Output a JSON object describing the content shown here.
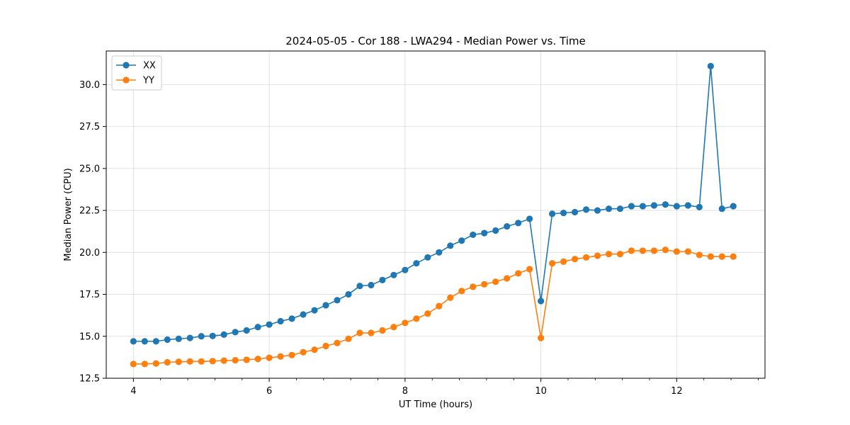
{
  "chart_data": {
    "type": "line",
    "title": "2024-05-05 - Cor 188 - LWA294 - Median Power vs. Time",
    "xlabel": "UT Time (hours)",
    "ylabel": "Median Power (CPU)",
    "xlim": [
      3.6,
      13.3
    ],
    "ylim": [
      12.5,
      32.0
    ],
    "xticks": [
      4,
      6,
      8,
      10,
      12
    ],
    "xtick_labels": [
      "4",
      "6",
      "8",
      "10",
      "12"
    ],
    "yticks": [
      12.5,
      15.0,
      17.5,
      20.0,
      22.5,
      25.0,
      27.5,
      30.0
    ],
    "ytick_labels": [
      "12.5",
      "15.0",
      "17.5",
      "20.0",
      "22.5",
      "25.0",
      "27.5",
      "30.0"
    ],
    "minor_x_step": 0.4,
    "grid": true,
    "legend_position": "top-left",
    "x": [
      4.0,
      4.1667,
      4.3333,
      4.5,
      4.6667,
      4.8333,
      5.0,
      5.1667,
      5.3333,
      5.5,
      5.6667,
      5.8333,
      6.0,
      6.1667,
      6.3333,
      6.5,
      6.6667,
      6.8333,
      7.0,
      7.1667,
      7.3333,
      7.5,
      7.6667,
      7.8333,
      8.0,
      8.1667,
      8.3333,
      8.5,
      8.6667,
      8.8333,
      9.0,
      9.1667,
      9.3333,
      9.5,
      9.6667,
      9.8333,
      10.0,
      10.1667,
      10.3333,
      10.5,
      10.6667,
      10.8333,
      11.0,
      11.1667,
      11.3333,
      11.5,
      11.6667,
      11.8333,
      12.0,
      12.1667,
      12.3333,
      12.5,
      12.6667,
      12.8333
    ],
    "series": [
      {
        "name": "XX",
        "color": "#1f77b4",
        "values": [
          14.7,
          14.7,
          14.7,
          14.8,
          14.85,
          14.9,
          15.0,
          15.02,
          15.1,
          15.25,
          15.35,
          15.55,
          15.7,
          15.9,
          16.05,
          16.3,
          16.55,
          16.85,
          17.15,
          17.5,
          18.0,
          18.05,
          18.35,
          18.65,
          18.95,
          19.35,
          19.7,
          20.0,
          20.4,
          20.7,
          21.05,
          21.15,
          21.3,
          21.55,
          21.75,
          22.0,
          17.1,
          22.3,
          22.35,
          22.4,
          22.55,
          22.5,
          22.6,
          22.6,
          22.75,
          22.75,
          22.8,
          22.85,
          22.75,
          22.8,
          22.7,
          31.1,
          22.6,
          22.75
        ]
      },
      {
        "name": "YY",
        "color": "#ff7f0e",
        "values": [
          13.35,
          13.35,
          13.38,
          13.45,
          13.48,
          13.5,
          13.5,
          13.52,
          13.55,
          13.57,
          13.6,
          13.65,
          13.72,
          13.8,
          13.88,
          14.05,
          14.2,
          14.42,
          14.6,
          14.85,
          15.2,
          15.2,
          15.35,
          15.55,
          15.8,
          16.05,
          16.35,
          16.8,
          17.3,
          17.7,
          17.95,
          18.1,
          18.25,
          18.45,
          18.75,
          19.0,
          14.9,
          19.35,
          19.45,
          19.6,
          19.7,
          19.8,
          19.9,
          19.9,
          20.1,
          20.1,
          20.1,
          20.15,
          20.05,
          20.05,
          19.85,
          19.75,
          19.75,
          19.75
        ]
      }
    ]
  }
}
